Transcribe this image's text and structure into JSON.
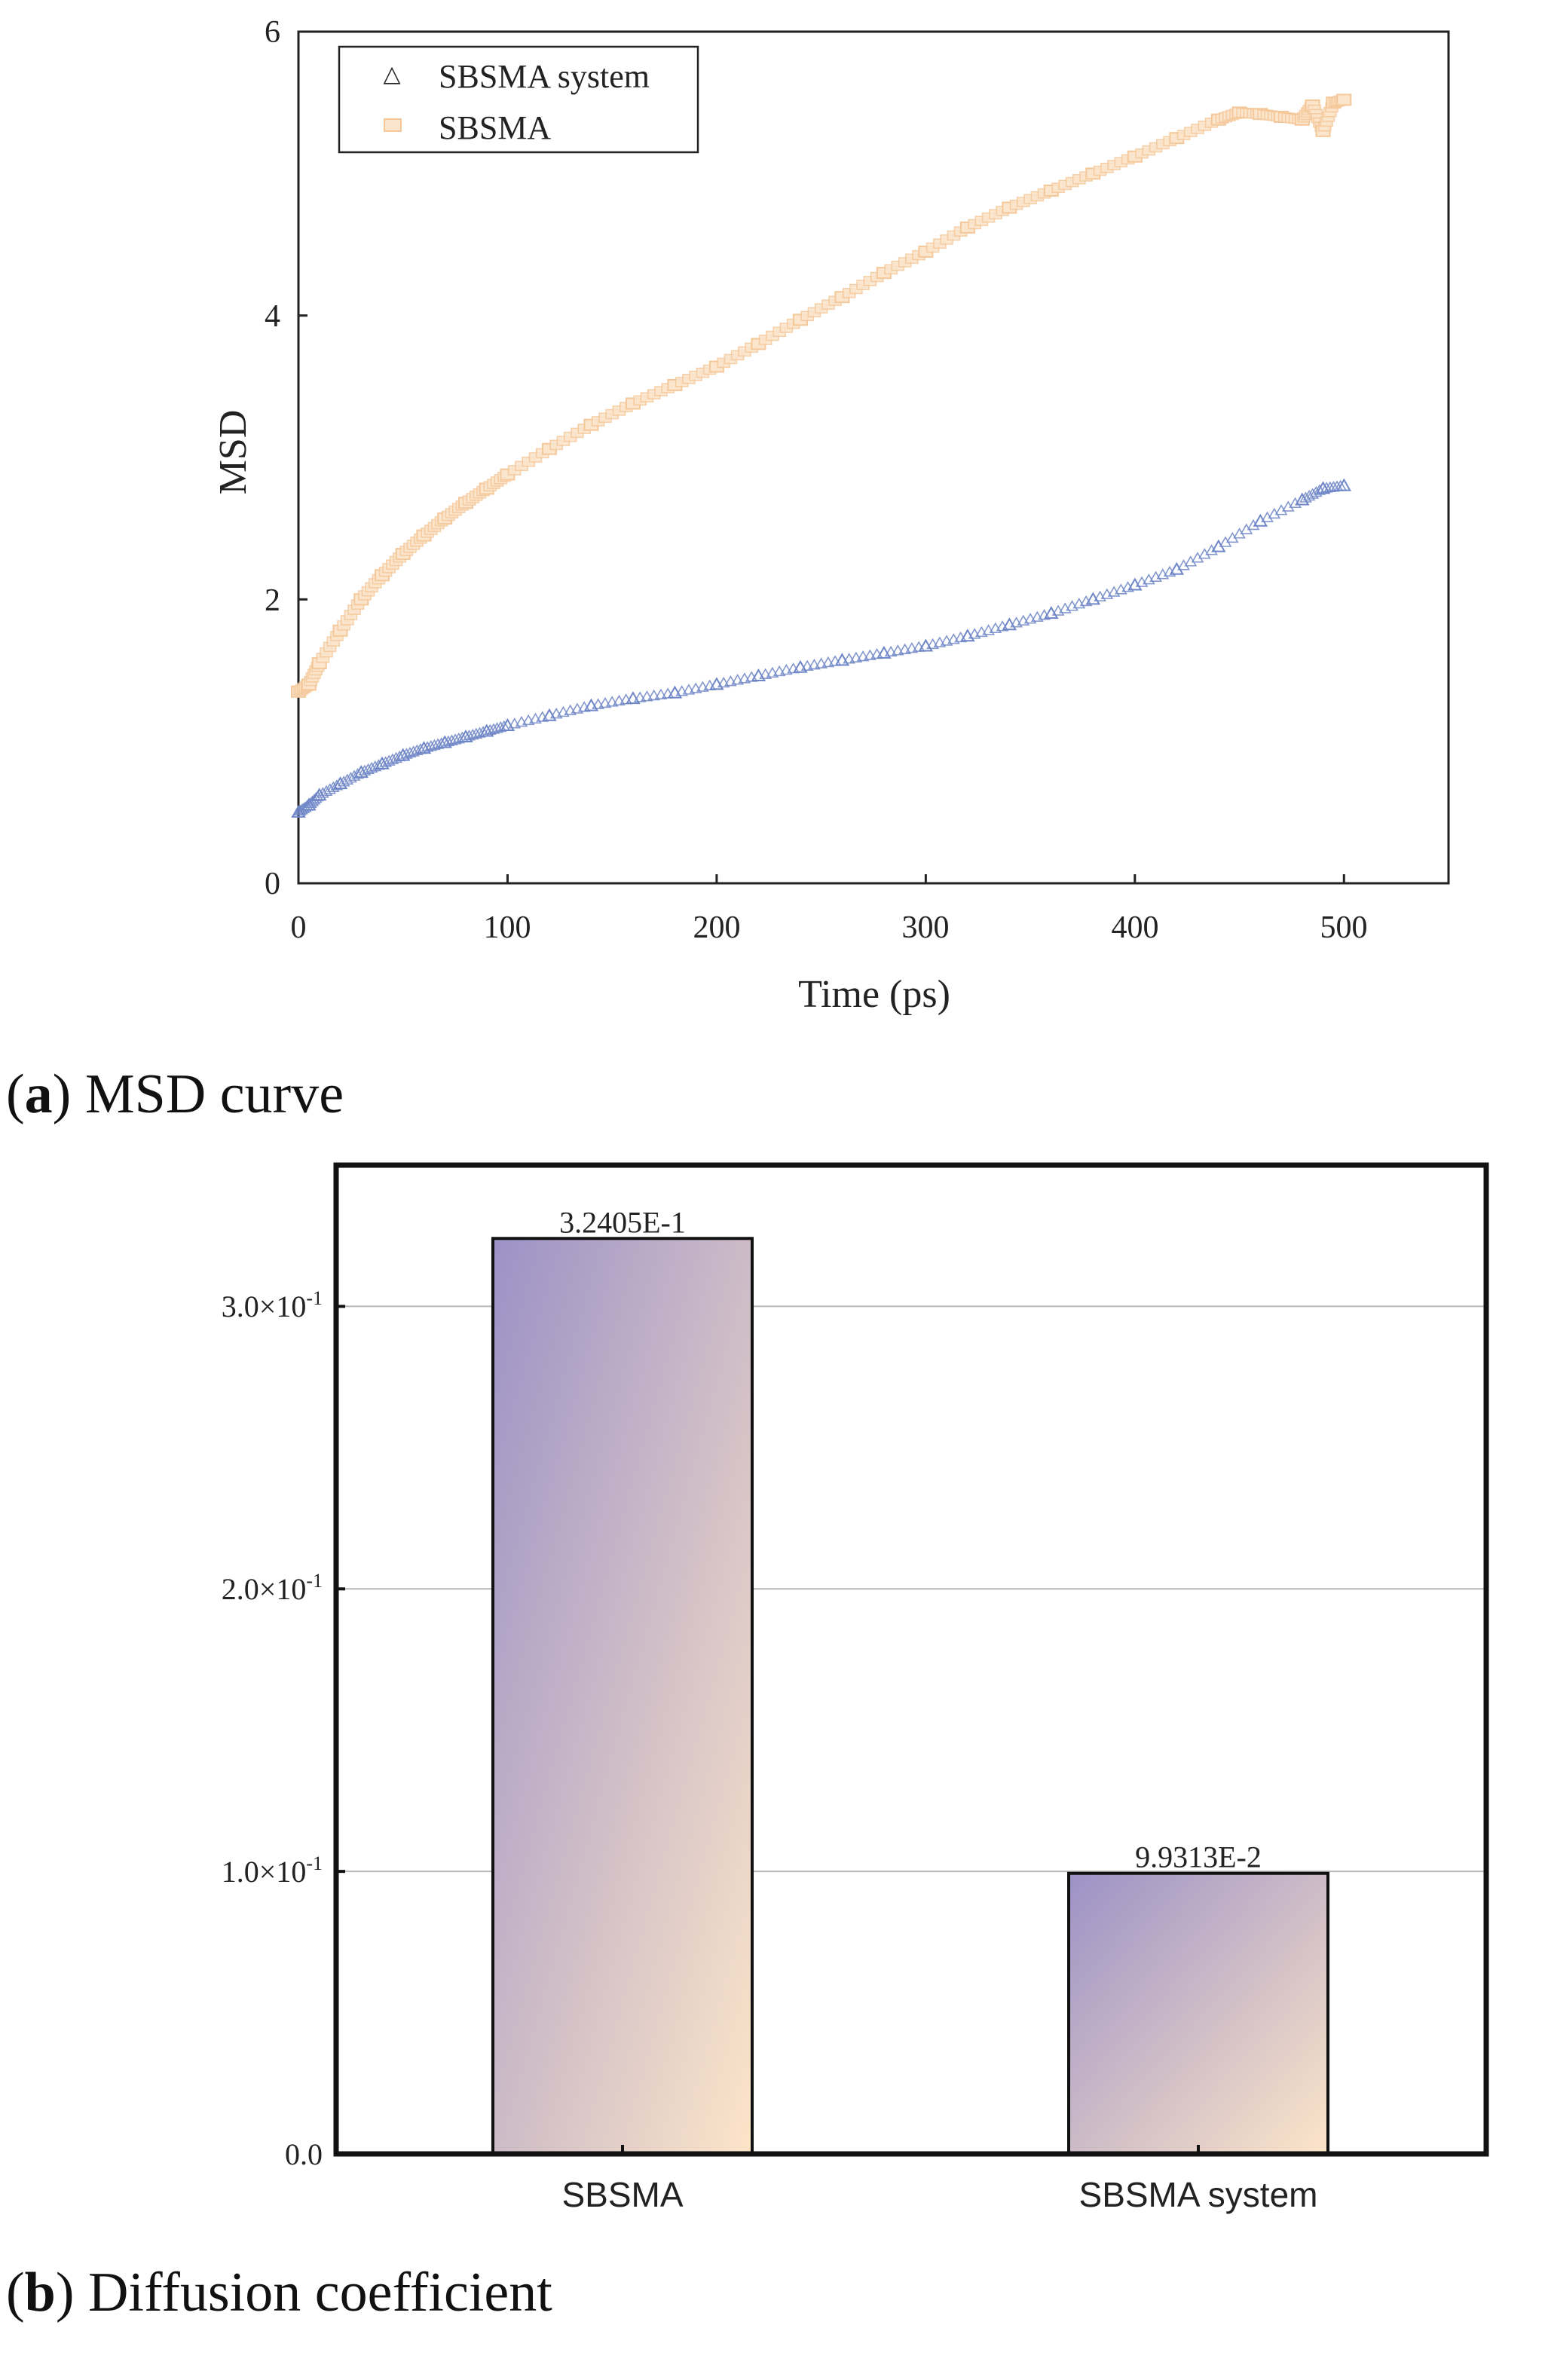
{
  "chart_data": [
    {
      "type": "scatter",
      "xlabel": "Time (ps)",
      "ylabel": "MSD",
      "xlim": [
        0,
        550
      ],
      "ylim": [
        0,
        6
      ],
      "xticks": [
        "0",
        "100",
        "200",
        "300",
        "400",
        "500"
      ],
      "yticks": [
        "0",
        "2",
        "4",
        "6"
      ],
      "legend_position": "top-left",
      "series": [
        {
          "name": "SBSMA system",
          "color": "#6e86c7",
          "marker": "triangle",
          "x": [
            0,
            5,
            10,
            20,
            30,
            40,
            50,
            60,
            70,
            80,
            90,
            100,
            120,
            140,
            160,
            180,
            200,
            220,
            240,
            260,
            280,
            300,
            320,
            340,
            360,
            380,
            400,
            420,
            440,
            460,
            480,
            490,
            500
          ],
          "y": [
            0.5,
            0.55,
            0.62,
            0.7,
            0.78,
            0.84,
            0.9,
            0.95,
            0.99,
            1.03,
            1.07,
            1.11,
            1.18,
            1.25,
            1.3,
            1.34,
            1.4,
            1.46,
            1.52,
            1.57,
            1.62,
            1.67,
            1.74,
            1.82,
            1.9,
            2.0,
            2.1,
            2.21,
            2.37,
            2.55,
            2.7,
            2.78,
            2.8
          ]
        },
        {
          "name": "SBSMA",
          "color": "#f5c89a",
          "marker": "square",
          "x": [
            0,
            5,
            10,
            20,
            30,
            40,
            50,
            60,
            70,
            80,
            90,
            100,
            120,
            140,
            160,
            180,
            200,
            220,
            240,
            260,
            280,
            300,
            320,
            340,
            360,
            380,
            400,
            420,
            440,
            450,
            460,
            470,
            480,
            485,
            490,
            495,
            500
          ],
          "y": [
            1.35,
            1.4,
            1.55,
            1.78,
            2.0,
            2.17,
            2.32,
            2.45,
            2.57,
            2.68,
            2.78,
            2.88,
            3.06,
            3.23,
            3.38,
            3.51,
            3.64,
            3.8,
            3.97,
            4.13,
            4.3,
            4.45,
            4.62,
            4.76,
            4.88,
            5.0,
            5.12,
            5.25,
            5.38,
            5.43,
            5.42,
            5.4,
            5.38,
            5.48,
            5.3,
            5.5,
            5.52
          ]
        }
      ]
    },
    {
      "type": "bar",
      "categories": [
        "SBSMA",
        "SBSMA system"
      ],
      "values": [
        0.32405,
        0.099313
      ],
      "data_labels": [
        "3.2405E-1",
        "9.9313E-2"
      ],
      "ylim": [
        0,
        0.35
      ],
      "yticks": [
        "0.0",
        "1.0×10",
        "2.0×10",
        "3.0×10"
      ],
      "ytick_values": [
        0,
        0.1,
        0.2,
        0.3
      ],
      "ytick_exponent": "-1",
      "gradient_start": "#9c91c6",
      "gradient_end": "#fde5c8",
      "xlabel": "",
      "ylabel": ""
    }
  ],
  "captions": {
    "a_letter": "a",
    "a_text": " MSD curve",
    "b_letter": "b",
    "b_text": " Diffusion coefficient"
  }
}
